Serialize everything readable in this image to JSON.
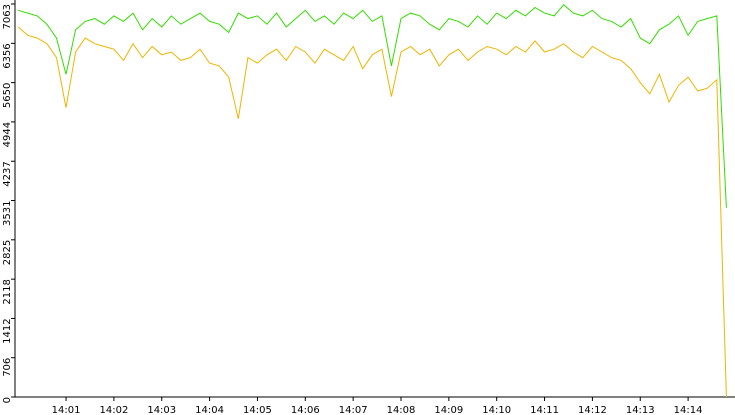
{
  "chart_data": {
    "type": "line",
    "categories": [
      null,
      null,
      null,
      null,
      null,
      "14:01",
      null,
      null,
      null,
      null,
      "14:02",
      null,
      null,
      null,
      null,
      "14:03",
      null,
      null,
      null,
      null,
      "14:04",
      null,
      null,
      null,
      null,
      "14:05",
      null,
      null,
      null,
      null,
      "14:06",
      null,
      null,
      null,
      null,
      "14:07",
      null,
      null,
      null,
      null,
      "14:08",
      null,
      null,
      null,
      null,
      "14:09",
      null,
      null,
      null,
      null,
      "14:10",
      null,
      null,
      null,
      null,
      "14:11",
      null,
      null,
      null,
      null,
      "14:12",
      null,
      null,
      null,
      null,
      "14:13",
      null,
      null,
      null,
      null,
      "14:14",
      null,
      null,
      null,
      null
    ],
    "series": [
      {
        "color": "#f0b400",
        "values": [
          6650,
          6500,
          6450,
          6350,
          6100,
          5200,
          6200,
          6450,
          6350,
          6300,
          6250,
          6050,
          6350,
          6100,
          6300,
          6150,
          6200,
          6050,
          6100,
          6250,
          6000,
          5950,
          5750,
          5000,
          6100,
          6000,
          6150,
          6250,
          6050,
          6300,
          6200,
          6000,
          6250,
          6150,
          6050,
          6300,
          5900,
          6150,
          6250,
          5400,
          6200,
          6300,
          6150,
          6250,
          5950,
          6150,
          6250,
          6050,
          6200,
          6300,
          6250,
          6150,
          6300,
          6200,
          6400,
          6200,
          6250,
          6350,
          6200,
          6100,
          6300,
          6200,
          6100,
          6050,
          5900,
          5650,
          5450,
          5800,
          5300,
          5600,
          5750,
          5500,
          5550,
          5700,
          0
        ]
      },
      {
        "color": "#33dd00",
        "values": [
          6950,
          6900,
          6850,
          6700,
          6450,
          5800,
          6600,
          6750,
          6800,
          6700,
          6850,
          6750,
          6900,
          6600,
          6800,
          6650,
          6850,
          6700,
          6800,
          6900,
          6750,
          6700,
          6550,
          6900,
          6800,
          6850,
          6700,
          6900,
          6650,
          6800,
          6950,
          6750,
          6850,
          6700,
          6900,
          6800,
          6950,
          6750,
          6850,
          5950,
          6800,
          6900,
          6850,
          6700,
          6600,
          6800,
          6750,
          6650,
          6850,
          6700,
          6900,
          6800,
          6950,
          6850,
          7000,
          6900,
          6850,
          7050,
          6900,
          6850,
          6950,
          6800,
          6750,
          6650,
          6800,
          6450,
          6350,
          6600,
          6700,
          6850,
          6500,
          6750,
          6800,
          6850,
          3400
        ]
      }
    ],
    "ylim": [
      0,
      7063
    ],
    "yticks": [
      0,
      706,
      1412,
      2118,
      2825,
      3531,
      4237,
      4944,
      5650,
      6356,
      7063
    ]
  }
}
